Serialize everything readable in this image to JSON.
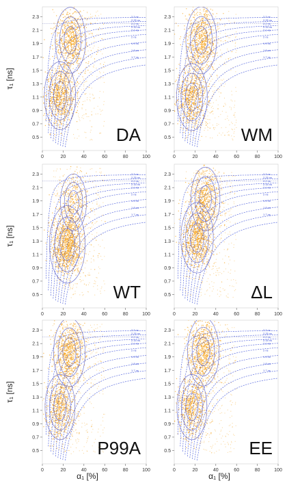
{
  "chart_data": {
    "type": "scatter",
    "xlabel": "α₁ [%]",
    "ylabel": "τ₁ [ns]",
    "xlim": [
      0,
      100
    ],
    "ylim": [
      0.3,
      2.45
    ],
    "x_ticks": [
      "0",
      "20",
      "40",
      "60",
      "80",
      "100"
    ],
    "y_ticks": [
      "0.5",
      "0.7",
      "0.9",
      "1.1",
      "1.3",
      "1.5",
      "1.7",
      "1.9",
      "2.1",
      "2.3"
    ],
    "isolines_ns": [
      2.3,
      2.25,
      2.2,
      2.15,
      2.1,
      2.0,
      1.9,
      1.8,
      1.7
    ],
    "isoline_labels": [
      "2.3 ns",
      "2.25 ns",
      "2.2 ns",
      "2.15 ns",
      "2.1 ns",
      "2 ns",
      "1.9 ns",
      "1.8 ns",
      "1.7 ns"
    ],
    "panels": [
      {
        "label": "DA",
        "clusters": [
          {
            "x": 27,
            "y": 1.95,
            "w": 0.47
          },
          {
            "x": 17,
            "y": 1.12,
            "w": 0.53
          }
        ]
      },
      {
        "label": "WM",
        "clusters": [
          {
            "x": 26,
            "y": 1.95,
            "w": 0.5
          },
          {
            "x": 17,
            "y": 1.1,
            "w": 0.5
          }
        ]
      },
      {
        "label": "WT",
        "clusters": [
          {
            "x": 30,
            "y": 1.88,
            "w": 0.2
          },
          {
            "x": 24,
            "y": 1.25,
            "w": 0.8
          }
        ]
      },
      {
        "label": "ΔL",
        "clusters": [
          {
            "x": 30,
            "y": 1.93,
            "w": 0.4
          },
          {
            "x": 22,
            "y": 1.35,
            "w": 0.6
          }
        ]
      },
      {
        "label": "P99A",
        "clusters": [
          {
            "x": 26,
            "y": 1.97,
            "w": 0.55
          },
          {
            "x": 17,
            "y": 1.15,
            "w": 0.45
          }
        ]
      },
      {
        "label": "EE",
        "clusters": [
          {
            "x": 28,
            "y": 1.98,
            "w": 0.55
          },
          {
            "x": 17,
            "y": 1.15,
            "w": 0.45
          }
        ]
      }
    ]
  },
  "colors": {
    "points": "#f5a623",
    "contour": "#5b5fc7",
    "isoline": "#3b4fd8",
    "grid_ref": "#9aa0d0"
  }
}
